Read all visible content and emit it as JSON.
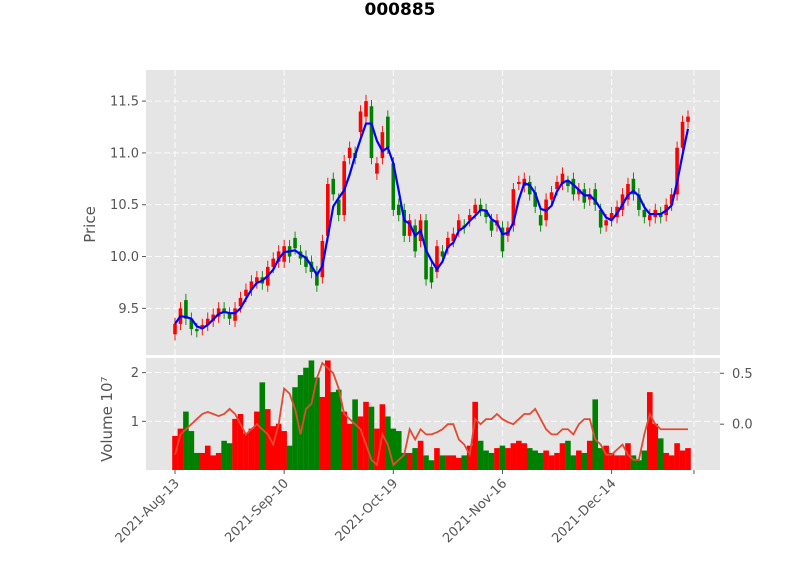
{
  "title": "000885",
  "chart_data": [
    {
      "type": "candlestick",
      "title": "000885",
      "ylabel": "Price",
      "ylim": [
        9.05,
        11.8
      ],
      "yticks": [
        "9.5",
        "10.0",
        "10.5",
        "11.0",
        "11.5"
      ],
      "grid": true,
      "up_color": "#ff0000",
      "down_color": "#008000",
      "ma_color": "#0000ff",
      "dates": [
        "2021-Aug-13",
        "2021-Aug-16",
        "2021-Aug-17",
        "2021-Aug-18",
        "2021-Aug-19",
        "2021-Aug-20",
        "2021-Aug-23",
        "2021-Aug-24",
        "2021-Aug-25",
        "2021-Aug-26",
        "2021-Aug-27",
        "2021-Aug-30",
        "2021-Aug-31",
        "2021-Sep-01",
        "2021-Sep-02",
        "2021-Sep-03",
        "2021-Sep-06",
        "2021-Sep-07",
        "2021-Sep-08",
        "2021-Sep-09",
        "2021-Sep-10",
        "2021-Sep-13",
        "2021-Sep-14",
        "2021-Sep-15",
        "2021-Sep-16",
        "2021-Sep-17",
        "2021-Sep-22",
        "2021-Sep-23",
        "2021-Sep-24",
        "2021-Sep-27",
        "2021-Sep-28",
        "2021-Sep-29",
        "2021-Sep-30",
        "2021-Oct-08",
        "2021-Oct-11",
        "2021-Oct-12",
        "2021-Oct-13",
        "2021-Oct-14",
        "2021-Oct-15",
        "2021-Oct-18",
        "2021-Oct-19",
        "2021-Oct-20",
        "2021-Oct-21",
        "2021-Oct-22",
        "2021-Oct-25",
        "2021-Oct-26",
        "2021-Oct-27",
        "2021-Oct-28",
        "2021-Oct-29",
        "2021-Nov-01",
        "2021-Nov-02",
        "2021-Nov-03",
        "2021-Nov-04",
        "2021-Nov-05",
        "2021-Nov-08",
        "2021-Nov-09",
        "2021-Nov-10",
        "2021-Nov-11",
        "2021-Nov-12",
        "2021-Nov-15",
        "2021-Nov-16",
        "2021-Nov-17",
        "2021-Nov-18",
        "2021-Nov-19",
        "2021-Nov-22",
        "2021-Nov-23",
        "2021-Nov-24",
        "2021-Nov-25",
        "2021-Nov-26",
        "2021-Nov-29",
        "2021-Nov-30",
        "2021-Dec-01",
        "2021-Dec-02",
        "2021-Dec-03",
        "2021-Dec-06",
        "2021-Dec-07",
        "2021-Dec-08",
        "2021-Dec-09",
        "2021-Dec-10",
        "2021-Dec-13",
        "2021-Dec-14",
        "2021-Dec-15",
        "2021-Dec-16",
        "2021-Dec-17",
        "2021-Dec-20",
        "2021-Dec-21",
        "2021-Dec-22",
        "2021-Dec-23",
        "2021-Dec-24",
        "2021-Dec-27",
        "2021-Dec-28",
        "2021-Dec-29",
        "2021-Dec-30",
        "2021-Dec-31",
        "2022-Jan-04"
      ],
      "xticks": [
        "2021-Aug-13",
        "2021-Sep-10",
        "2021-Oct-19",
        "2021-Nov-16",
        "2021-Dec-14"
      ],
      "open": [
        9.25,
        9.35,
        9.58,
        9.4,
        9.3,
        9.3,
        9.34,
        9.38,
        9.42,
        9.5,
        9.45,
        9.38,
        9.52,
        9.62,
        9.68,
        9.75,
        9.8,
        9.72,
        9.9,
        9.95,
        9.95,
        10.1,
        10.18,
        10.05,
        10.0,
        9.95,
        9.85,
        9.8,
        10.2,
        10.75,
        10.55,
        10.4,
        10.95,
        11.0,
        11.2,
        11.35,
        11.45,
        10.8,
        10.95,
        11.35,
        10.9,
        10.5,
        10.45,
        10.2,
        10.3,
        10.15,
        10.35,
        9.9,
        9.85,
        10.05,
        10.08,
        10.15,
        10.25,
        10.3,
        10.35,
        10.42,
        10.5,
        10.45,
        10.35,
        10.3,
        10.28,
        10.2,
        10.3,
        10.7,
        10.68,
        10.72,
        10.62,
        10.4,
        10.35,
        10.55,
        10.65,
        10.7,
        10.72,
        10.75,
        10.6,
        10.65,
        10.55,
        10.65,
        10.45,
        10.3,
        10.35,
        10.38,
        10.45,
        10.55,
        10.75,
        10.6,
        10.45,
        10.35,
        10.38,
        10.42,
        10.4,
        10.5,
        10.6,
        11.05,
        11.3
      ],
      "close": [
        9.35,
        9.5,
        9.4,
        9.3,
        9.28,
        9.34,
        9.4,
        9.44,
        9.5,
        9.46,
        9.4,
        9.5,
        9.6,
        9.68,
        9.76,
        9.8,
        9.74,
        9.9,
        9.98,
        10.05,
        10.1,
        10.0,
        10.08,
        9.98,
        9.9,
        9.85,
        9.72,
        10.15,
        10.7,
        10.6,
        10.4,
        10.92,
        11.05,
        10.95,
        11.4,
        11.5,
        10.95,
        10.9,
        11.2,
        11.05,
        10.45,
        10.4,
        10.2,
        10.35,
        10.05,
        10.35,
        9.78,
        9.75,
        10.1,
        10.0,
        10.18,
        10.22,
        10.35,
        10.28,
        10.4,
        10.5,
        10.45,
        10.38,
        10.25,
        10.35,
        10.05,
        10.28,
        10.65,
        10.72,
        10.75,
        10.6,
        10.48,
        10.3,
        10.55,
        10.62,
        10.72,
        10.8,
        10.68,
        10.6,
        10.65,
        10.52,
        10.6,
        10.5,
        10.28,
        10.35,
        10.42,
        10.48,
        10.6,
        10.7,
        10.6,
        10.45,
        10.38,
        10.4,
        10.45,
        10.38,
        10.5,
        10.6,
        11.05,
        11.3,
        11.35
      ]
    },
    {
      "type": "bar",
      "ylabel": "Volume",
      "offset_label": "10⁷",
      "ylim": [
        0,
        2.3
      ],
      "yticks": [
        "1",
        "2"
      ],
      "secondary_yticks": [
        "0.0",
        "0.5"
      ],
      "secondary_ylim": [
        -0.45,
        0.65
      ],
      "grid": true,
      "volume": [
        0.7,
        0.85,
        1.2,
        0.8,
        0.35,
        0.35,
        0.5,
        0.3,
        0.35,
        0.6,
        0.55,
        1.05,
        1.15,
        0.75,
        0.85,
        1.2,
        1.8,
        1.25,
        0.9,
        0.95,
        0.8,
        0.5,
        1.7,
        1.95,
        2.1,
        2.25,
        1.9,
        1.5,
        2.25,
        1.6,
        1.65,
        1.2,
        0.95,
        1.45,
        1.1,
        1.4,
        1.3,
        0.85,
        1.35,
        1.1,
        0.85,
        0.8,
        0.35,
        0.35,
        0.45,
        0.6,
        0.3,
        0.2,
        0.45,
        0.3,
        0.3,
        0.3,
        0.25,
        0.3,
        0.5,
        1.4,
        0.6,
        0.4,
        0.35,
        0.45,
        0.5,
        0.45,
        0.55,
        0.6,
        0.55,
        0.45,
        0.4,
        0.35,
        0.4,
        0.3,
        0.35,
        0.55,
        0.6,
        0.3,
        0.4,
        0.35,
        0.6,
        1.45,
        0.45,
        0.5,
        0.35,
        0.3,
        0.3,
        0.55,
        0.3,
        0.2,
        0.4,
        1.6,
        0.95,
        0.65,
        0.35,
        0.3,
        0.55,
        0.4,
        0.45
      ],
      "oscillator": [
        -0.3,
        -0.1,
        -0.05,
        0.0,
        0.05,
        0.1,
        0.12,
        0.1,
        0.08,
        0.1,
        0.15,
        0.1,
        0.0,
        -0.1,
        -0.05,
        0.0,
        -0.05,
        -0.1,
        -0.2,
        0.0,
        0.35,
        0.3,
        0.15,
        -0.1,
        0.15,
        0.2,
        0.45,
        0.6,
        0.55,
        0.5,
        0.35,
        0.1,
        0.05,
        0.0,
        -0.05,
        -0.2,
        -0.35,
        -0.4,
        -0.1,
        -0.2,
        -0.4,
        -0.35,
        -0.3,
        -0.05,
        -0.15,
        -0.05,
        -0.1,
        -0.1,
        -0.08,
        -0.05,
        0.0,
        0.0,
        -0.15,
        -0.2,
        -0.3,
        0.05,
        0.0,
        0.05,
        0.05,
        0.1,
        0.05,
        0.02,
        0.0,
        0.05,
        0.1,
        0.1,
        0.15,
        0.05,
        -0.05,
        -0.1,
        -0.1,
        -0.05,
        -0.05,
        -0.1,
        0.0,
        0.05,
        0.05,
        -0.15,
        -0.2,
        -0.3,
        -0.3,
        -0.25,
        -0.2,
        -0.3,
        -0.35,
        -0.35,
        -0.1,
        0.1,
        0.0,
        -0.05,
        -0.05,
        -0.05,
        -0.05,
        -0.05,
        -0.05
      ]
    }
  ]
}
